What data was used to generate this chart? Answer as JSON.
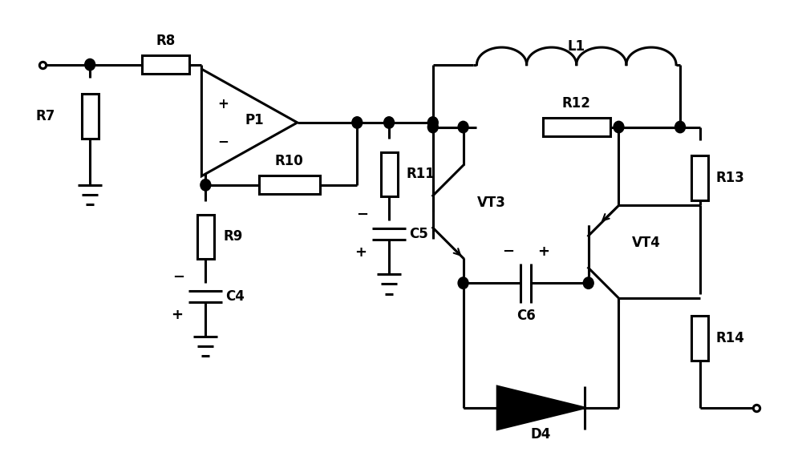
{
  "bg_color": "#ffffff",
  "lc": "#000000",
  "lw": 2.2,
  "figsize": [
    10.0,
    5.84
  ],
  "dpi": 100,
  "xlim": [
    0,
    10
  ],
  "ylim": [
    0.8,
    6.0
  ]
}
